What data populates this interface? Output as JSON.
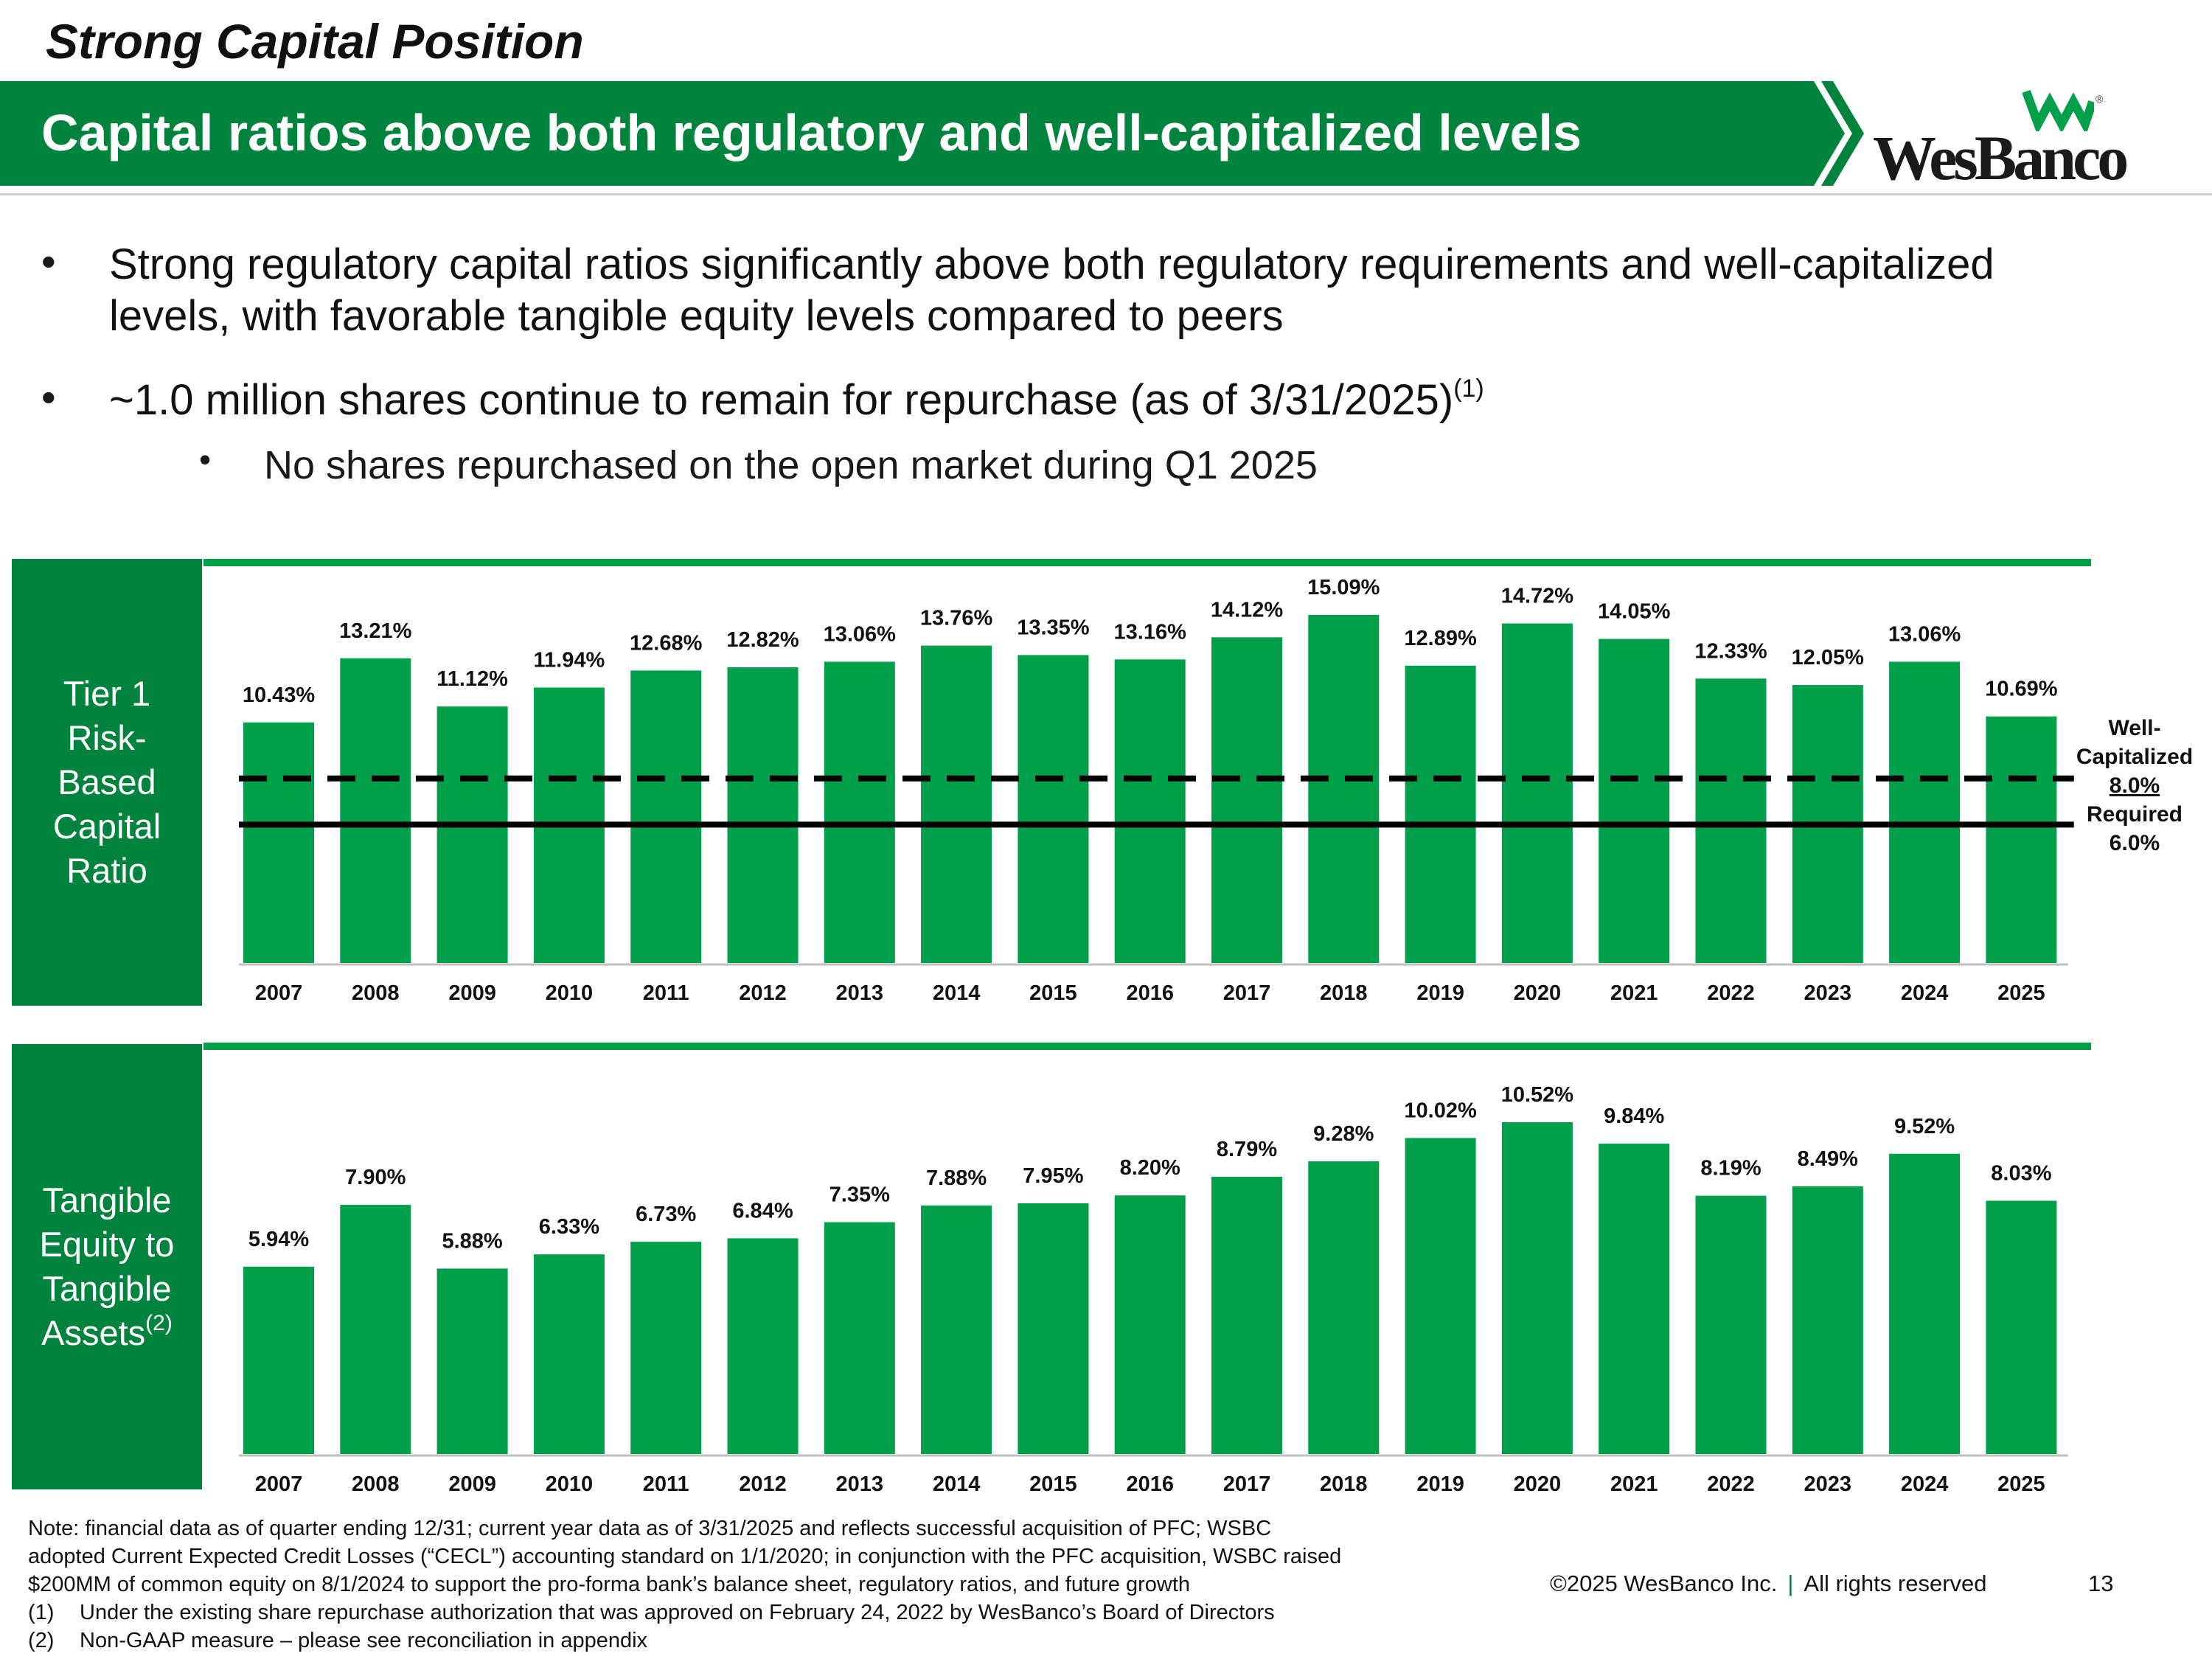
{
  "header": {
    "section_title": "Strong Capital Position",
    "title": "Capital ratios above both regulatory and well-capitalized levels",
    "logo_text": "WesBanco",
    "logo_reg": "®",
    "brand_color": "#00843d"
  },
  "bullets": {
    "b1": "Strong regulatory capital ratios significantly above both regulatory requirements and well-capitalized levels, with favorable tangible equity levels compared to peers",
    "b2": "~1.0 million shares continue to remain for repurchase (as of 3/31/2025)",
    "b2_sup": "(1)",
    "sub1": "No shares repurchased on the open market during Q1 2025",
    "bullet_glyph": "•"
  },
  "panels": {
    "tier1_label": [
      "Tier 1",
      "Risk-",
      "Based",
      "Capital",
      "Ratio"
    ],
    "tangible_label": [
      "Tangible",
      "Equity to",
      "Tangible",
      "Assets"
    ],
    "tangible_sup": "(2)"
  },
  "ref_lines": {
    "well_cap_line1": "Well-",
    "well_cap_line2": "Capitalized",
    "well_cap_value": "8.0%",
    "required_label": "Required",
    "required_value": "6.0%"
  },
  "chart_data": [
    {
      "type": "bar",
      "title": "Tier 1 Risk-Based Capital Ratio",
      "categories": [
        "2007",
        "2008",
        "2009",
        "2010",
        "2011",
        "2012",
        "2013",
        "2014",
        "2015",
        "2016",
        "2017",
        "2018",
        "2019",
        "2020",
        "2021",
        "2022",
        "2023",
        "2024",
        "2025"
      ],
      "values": [
        10.43,
        13.21,
        11.12,
        11.94,
        12.68,
        12.82,
        13.06,
        13.76,
        13.35,
        13.16,
        14.12,
        15.09,
        12.89,
        14.72,
        14.05,
        12.33,
        12.05,
        13.06,
        10.69
      ],
      "labels": [
        "10.43%",
        "13.21%",
        "11.12%",
        "11.94%",
        "12.68%",
        "12.82%",
        "13.06%",
        "13.76%",
        "13.35%",
        "13.16%",
        "14.12%",
        "15.09%",
        "12.89%",
        "14.72%",
        "14.05%",
        "12.33%",
        "12.05%",
        "13.06%",
        "10.69%"
      ],
      "reference_lines": [
        {
          "name": "Well-Capitalized",
          "value": 8.0,
          "style": "dashed"
        },
        {
          "name": "Required",
          "value": 6.0,
          "style": "solid"
        }
      ],
      "ylim": [
        0,
        15.09
      ],
      "bar_color": "#00a04a",
      "xlabel": "",
      "ylabel": ""
    },
    {
      "type": "bar",
      "title": "Tangible Equity to Tangible Assets",
      "categories": [
        "2007",
        "2008",
        "2009",
        "2010",
        "2011",
        "2012",
        "2013",
        "2014",
        "2015",
        "2016",
        "2017",
        "2018",
        "2019",
        "2020",
        "2021",
        "2022",
        "2023",
        "2024",
        "2025"
      ],
      "values": [
        5.94,
        7.9,
        5.88,
        6.33,
        6.73,
        6.84,
        7.35,
        7.88,
        7.95,
        8.2,
        8.79,
        9.28,
        10.02,
        10.52,
        9.84,
        8.19,
        8.49,
        9.52,
        8.03
      ],
      "labels": [
        "5.94%",
        "7.90%",
        "5.88%",
        "6.33%",
        "6.73%",
        "6.84%",
        "7.35%",
        "7.88%",
        "7.95%",
        "8.20%",
        "8.79%",
        "9.28%",
        "10.02%",
        "10.52%",
        "9.84%",
        "8.19%",
        "8.49%",
        "9.52%",
        "8.03%"
      ],
      "ylim": [
        0,
        10.52
      ],
      "bar_color": "#00a04a",
      "xlabel": "",
      "ylabel": ""
    }
  ],
  "footer": {
    "note_lines": [
      "Note: financial data as of quarter ending 12/31; current year data as of 3/31/2025 and reflects successful acquisition of PFC; WSBC",
      "adopted Current Expected Credit Losses (“CECL”) accounting standard on 1/1/2020; in conjunction with the PFC acquisition, WSBC raised",
      "$200MM of common equity on 8/1/2024 to support the pro-forma bank’s balance sheet, regulatory ratios, and future growth"
    ],
    "fn1_mark": "(1)",
    "fn1_text": "Under the existing share repurchase authorization that was approved on February 24, 2022 by WesBanco’s Board of Directors",
    "fn2_mark": "(2)",
    "fn2_text": "Non-GAAP measure – please see reconciliation in appendix",
    "copyright": "©2025 WesBanco Inc.",
    "separator": "|",
    "rights": "All rights reserved",
    "page_number": "13"
  }
}
